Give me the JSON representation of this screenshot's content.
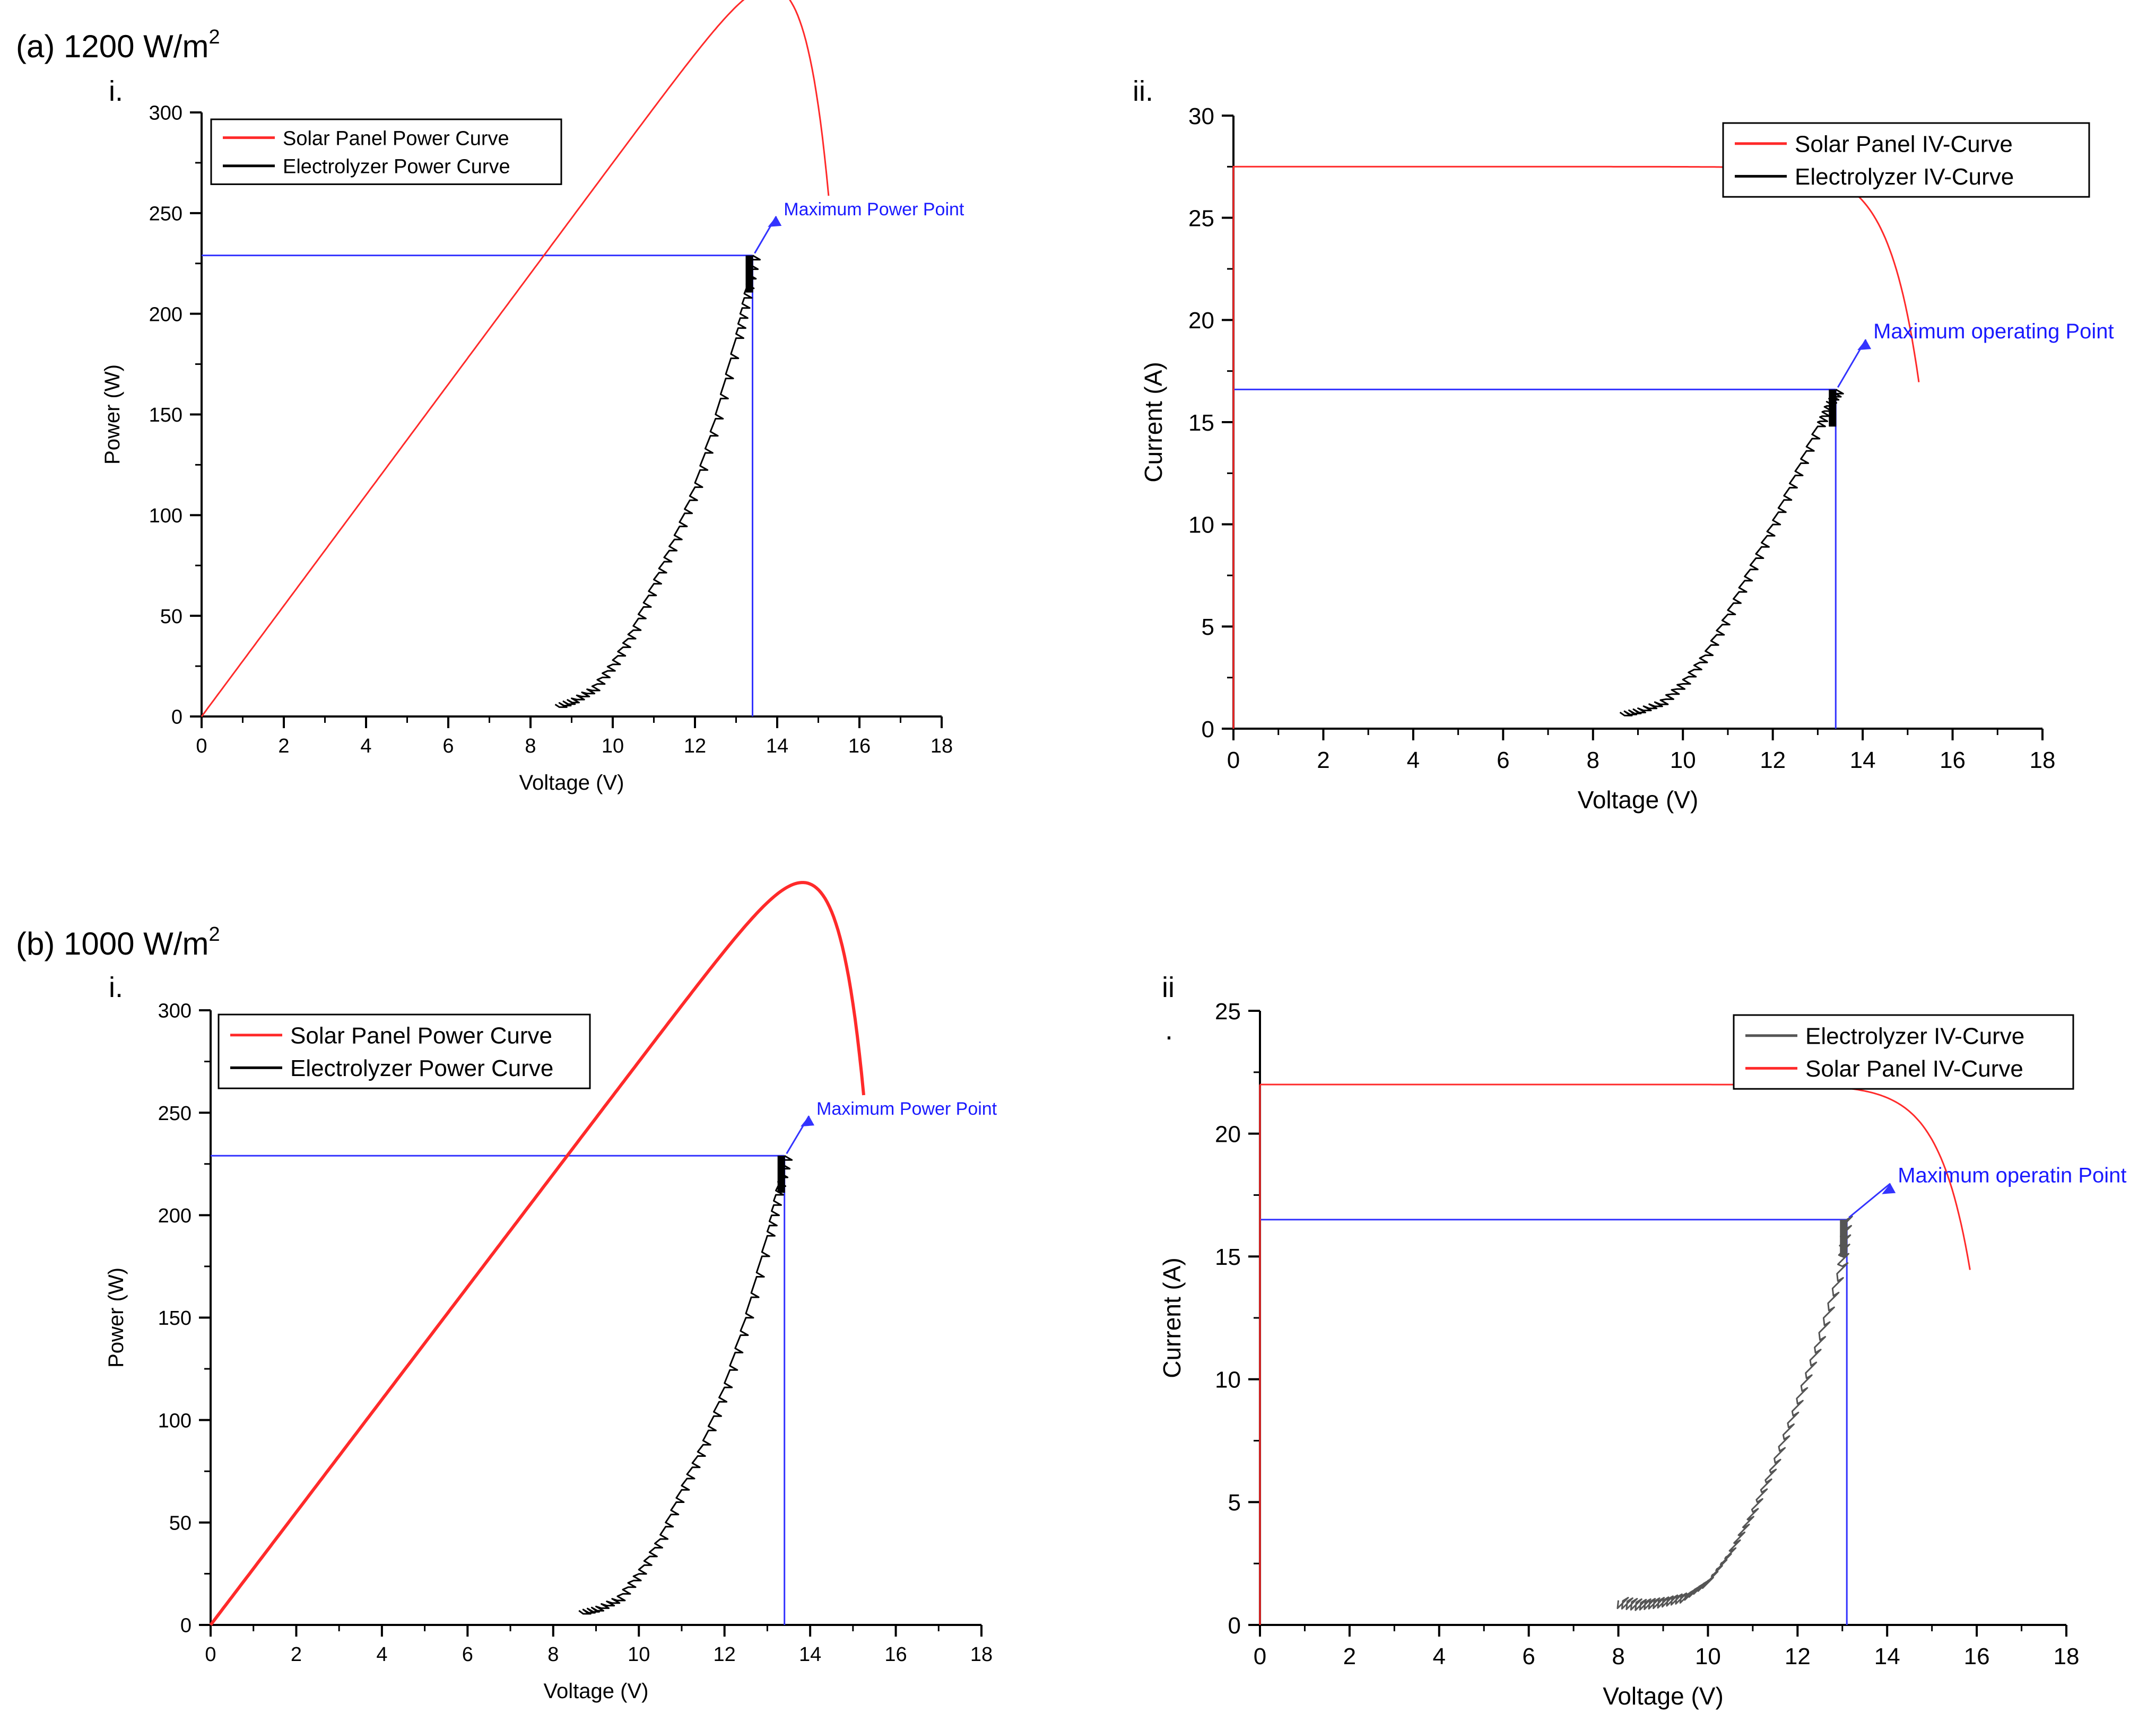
{
  "colors": {
    "solar": "#ff2a2a",
    "electrolyzer": "#000000",
    "electrolyzer_gray": "#555555",
    "guide": "#3333ff",
    "axis": "#000000"
  },
  "sections": [
    {
      "label_main": "(a) 1200 W/m",
      "label_sup": "2"
    },
    {
      "label_main": "(b) 1000 W/m",
      "label_sup": "2"
    }
  ],
  "chart_data": [
    {
      "id": "a-i",
      "type": "line",
      "panel_label": "i.",
      "xlabel": "Voltage (V)",
      "ylabel": "Power (W)",
      "xlim": [
        0,
        18
      ],
      "ylim": [
        0,
        300
      ],
      "xticks": [
        0,
        2,
        4,
        6,
        8,
        10,
        12,
        14,
        16,
        18
      ],
      "yticks": [
        0,
        50,
        100,
        150,
        200,
        250,
        300
      ],
      "legend_position": "top-left",
      "legend": [
        "Solar Panel Power Curve",
        "Electrolyzer Power Curve"
      ],
      "annotation": {
        "text": "Maximum Power Point",
        "point": [
          13.4,
          229
        ],
        "text_at": [
          13.9,
          250
        ]
      },
      "guide": {
        "x": 13.4,
        "y": 229
      },
      "series": [
        {
          "name": "Solar Panel Power Curve",
          "kind": "power",
          "isc": 27.5,
          "voc": 15.9,
          "a": 0.0113,
          "b": 0.678,
          "xend": 15.25
        },
        {
          "name": "Electrolyzer Power Curve",
          "kind": "electrolyzer",
          "steps": true,
          "x": [
            8.6,
            9.0,
            9.5,
            10.0,
            10.5,
            11.0,
            11.5,
            12.0,
            12.5,
            13.0,
            13.2,
            13.4
          ],
          "y": [
            6,
            9,
            15,
            28,
            45,
            68,
            90,
            116,
            150,
            190,
            210,
            229
          ]
        }
      ]
    },
    {
      "id": "a-ii",
      "type": "line",
      "panel_label": "ii.",
      "xlabel": "Voltage (V)",
      "ylabel": "Current (A)",
      "xlim": [
        0,
        18
      ],
      "ylim": [
        0,
        30
      ],
      "xticks": [
        0,
        2,
        4,
        6,
        8,
        10,
        12,
        14,
        16,
        18
      ],
      "yticks": [
        0,
        5,
        10,
        15,
        20,
        25,
        30
      ],
      "legend_position": "top-right",
      "legend": [
        "Solar Panel IV-Curve",
        "Electrolyzer IV-Curve"
      ],
      "annotation": {
        "text": "Maximum operating Point",
        "point": [
          13.4,
          16.6
        ],
        "text_at": [
          14.0,
          19.2
        ]
      },
      "guide": {
        "x": 13.4,
        "y": 16.6
      },
      "series": [
        {
          "name": "Solar Panel IV-Curve",
          "kind": "iv",
          "isc": 27.5,
          "voc": 15.9,
          "a": 0.0113,
          "b": 0.678,
          "xend": 15.25
        },
        {
          "name": "Electrolyzer IV-Curve",
          "kind": "electrolyzer",
          "steps": true,
          "x": [
            8.6,
            9.0,
            9.5,
            10.0,
            10.5,
            11.0,
            11.5,
            12.0,
            12.5,
            13.0,
            13.2,
            13.4
          ],
          "y": [
            0.8,
            1.0,
            1.4,
            2.4,
            3.8,
            5.8,
            8.0,
            10.2,
            12.6,
            15.0,
            16.0,
            16.6
          ]
        }
      ]
    },
    {
      "id": "b-i",
      "type": "line",
      "panel_label": "i.",
      "xlabel": "Voltage (V)",
      "ylabel": "Power (W)",
      "xlim": [
        0,
        18
      ],
      "ylim": [
        0,
        300
      ],
      "xticks": [
        0,
        2,
        4,
        6,
        8,
        10,
        12,
        14,
        16,
        18
      ],
      "yticks": [
        0,
        50,
        100,
        150,
        200,
        250,
        300
      ],
      "legend_position": "top-left",
      "legend": [
        "Solar Panel Power Curve",
        "Electrolyzer Power Curve"
      ],
      "annotation": {
        "text": "Maximum Power Point",
        "point": [
          13.4,
          229
        ],
        "text_at": [
          13.9,
          250
        ]
      },
      "guide": {
        "x": 13.4,
        "y": 229
      },
      "series": [
        {
          "name": "Solar Panel Power Curve",
          "kind": "power",
          "isc": 27.5,
          "voc": 15.9,
          "a": 0.0113,
          "b": 0.678,
          "xend": 15.25
        },
        {
          "name": "Electrolyzer Power Curve",
          "kind": "electrolyzer",
          "steps": true,
          "x": [
            8.6,
            9.0,
            9.5,
            10.0,
            10.5,
            11.0,
            11.5,
            12.0,
            12.5,
            13.0,
            13.2,
            13.4
          ],
          "y": [
            7,
            9,
            14,
            27,
            44,
            68,
            90,
            118,
            152,
            192,
            212,
            229
          ]
        }
      ]
    },
    {
      "id": "b-ii",
      "type": "line",
      "panel_label": "ii",
      "panel_label_dot": ".",
      "xlabel": "Voltage (V)",
      "ylabel": "Current (A)",
      "xlim": [
        0,
        18
      ],
      "ylim": [
        0,
        25
      ],
      "xticks": [
        0,
        2,
        4,
        6,
        8,
        10,
        12,
        14,
        16,
        18
      ],
      "yticks": [
        0,
        5,
        10,
        15,
        20,
        25
      ],
      "legend_position": "top-right",
      "legend": [
        "Electrolyzer IV-Curve",
        "Solar Panel IV-Curve"
      ],
      "annotation": {
        "text": "Maximum operatin Point",
        "point": [
          13.1,
          16.5
        ],
        "text_at": [
          14.0,
          18.1
        ]
      },
      "guide": {
        "x": 13.1,
        "y": 16.5
      },
      "series": [
        {
          "name": "Electrolyzer IV-Curve",
          "kind": "electrolyzer",
          "steps": false,
          "x": [
            8.0,
            8.5,
            9.0,
            9.5,
            10.0,
            10.5,
            11.0,
            11.5,
            12.0,
            12.5,
            13.0,
            13.1
          ],
          "y": [
            1.0,
            0.9,
            1.0,
            1.2,
            1.8,
            3.0,
            4.6,
            6.6,
            9.0,
            11.6,
            14.6,
            16.5
          ]
        },
        {
          "name": "Solar Panel IV-Curve",
          "kind": "iv",
          "isc": 22.0,
          "voc": 16.6,
          "a": 0.0079,
          "b": 0.701,
          "xend": 15.85
        }
      ]
    }
  ]
}
